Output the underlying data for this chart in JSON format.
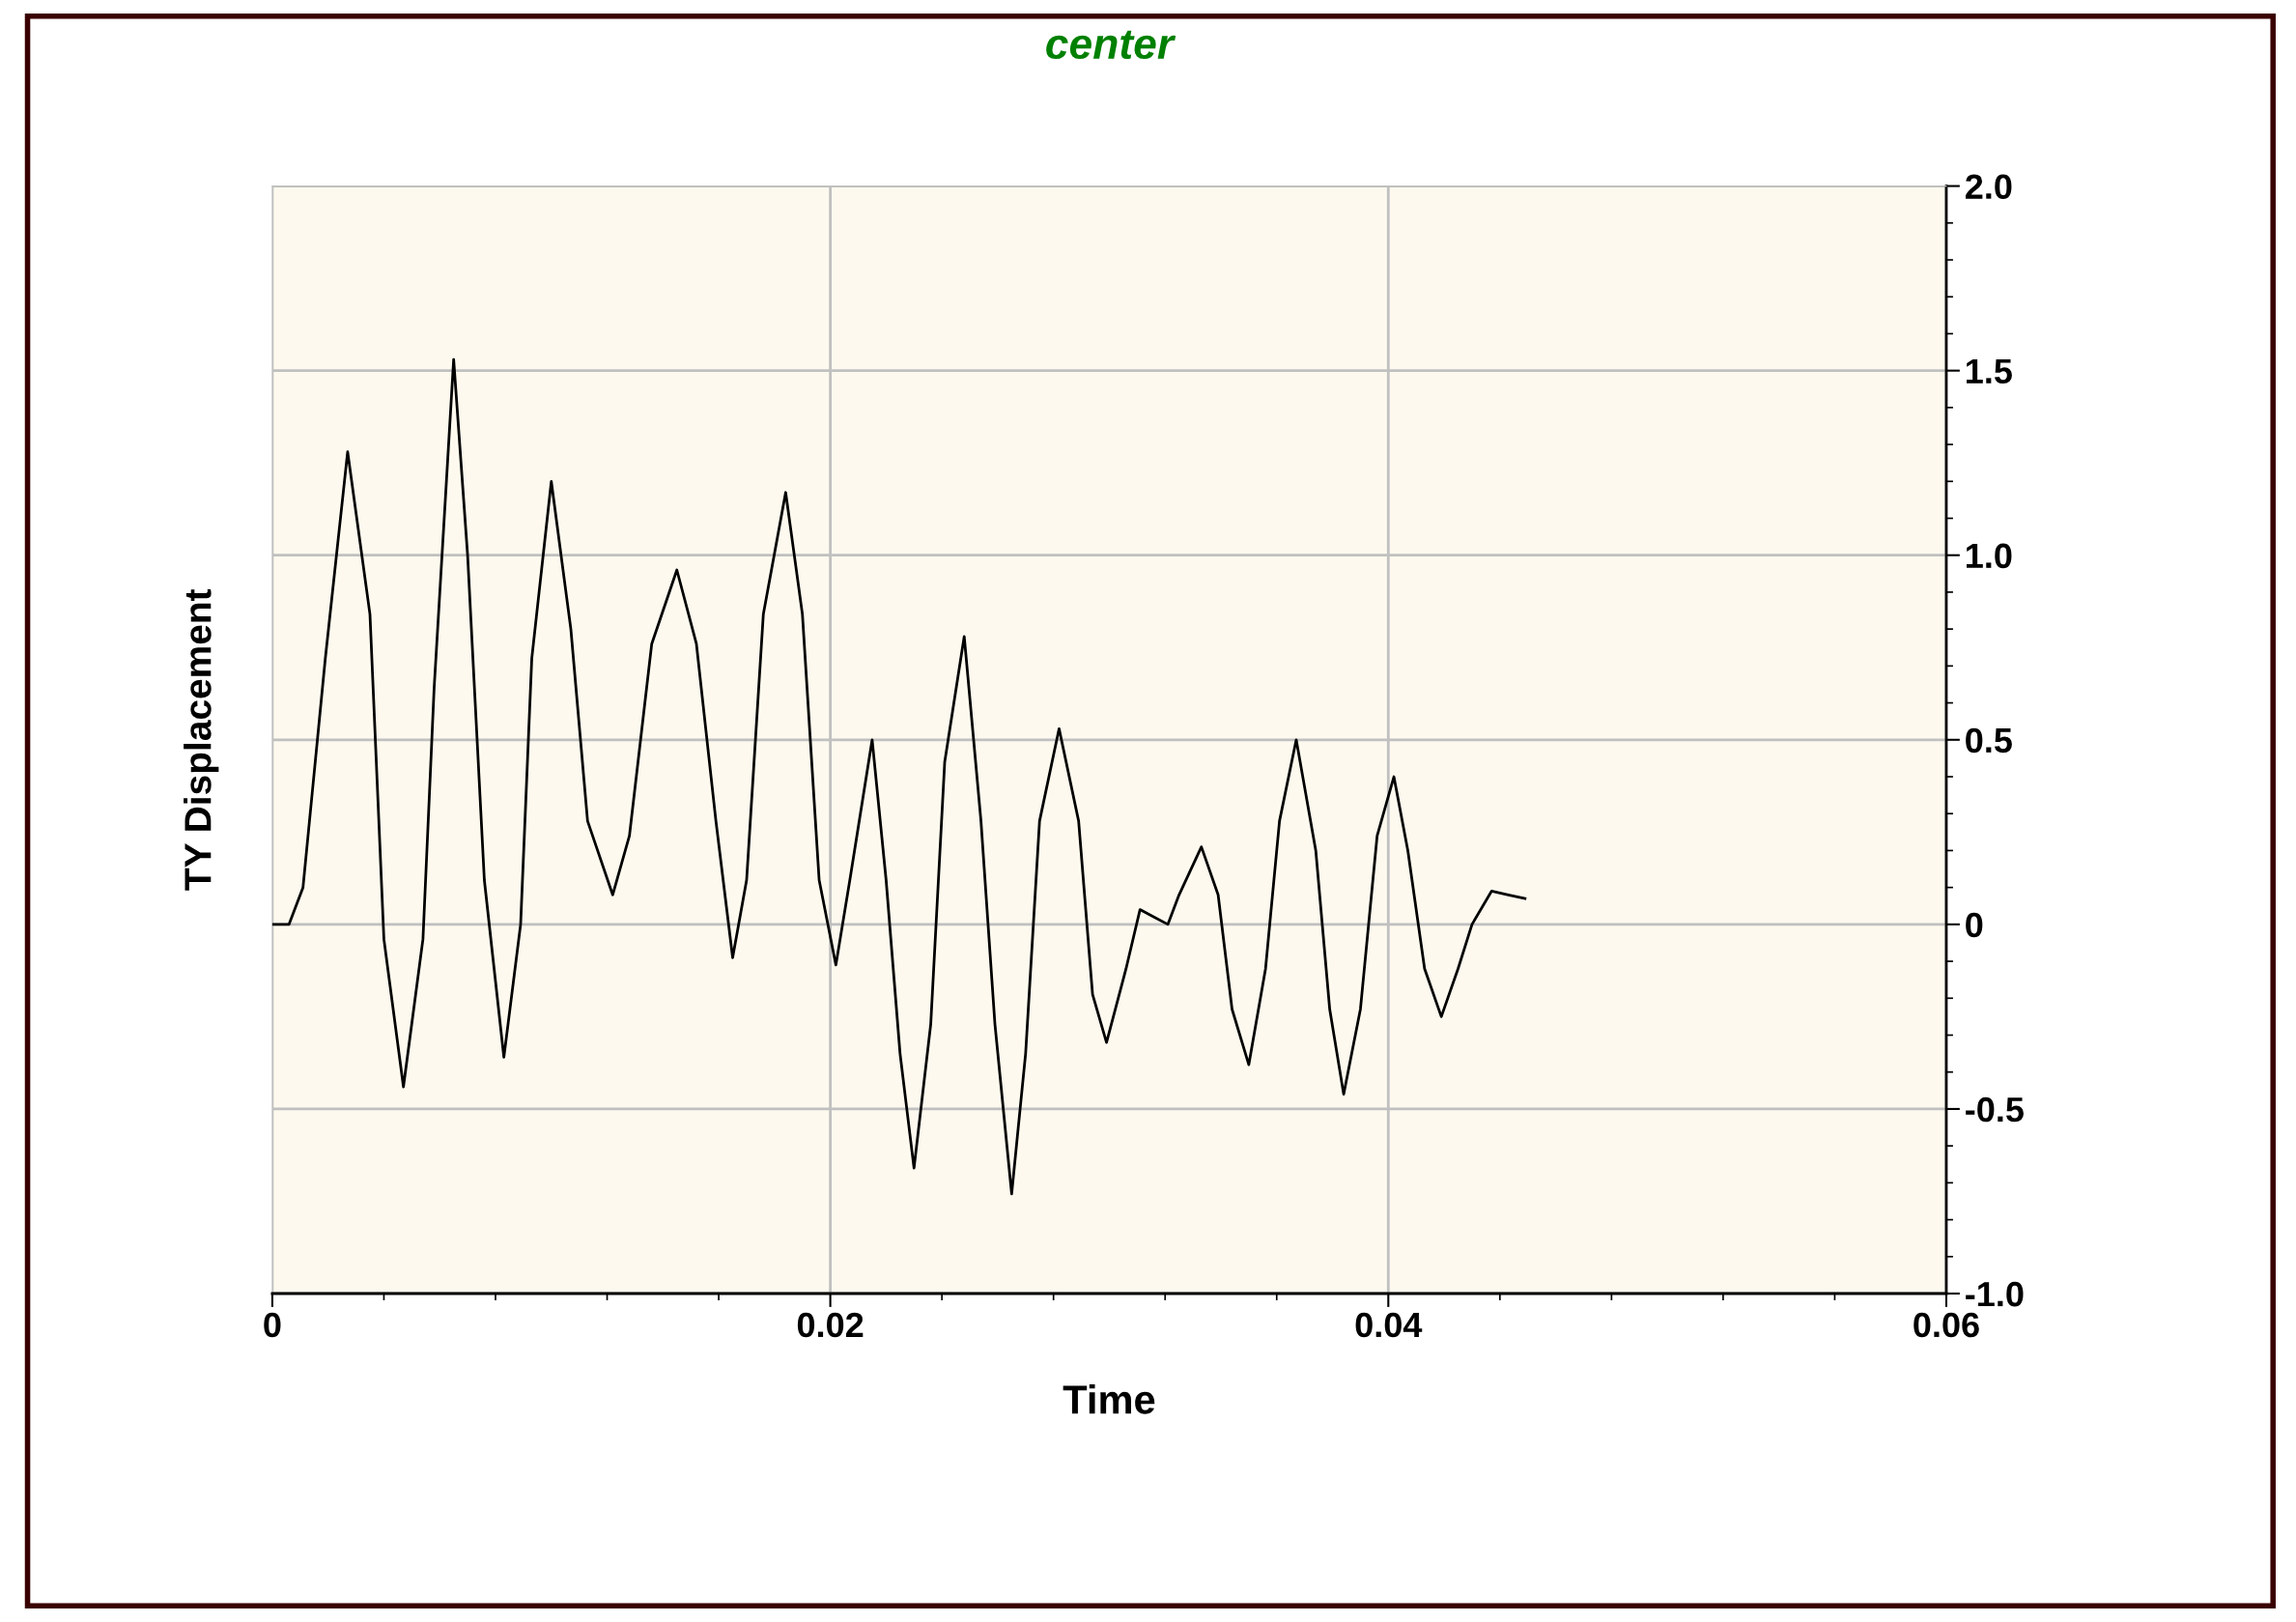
{
  "chart_data": {
    "type": "line",
    "title": "center",
    "xlabel": "Time",
    "ylabel": "TY Displacement",
    "xlim": [
      0,
      0.06
    ],
    "xticks": [
      0,
      0.02,
      0.04,
      0.06
    ],
    "ylim": [
      -1.0,
      2.0
    ],
    "yticks": [
      {
        "value": -1.0,
        "label": "-1.0"
      },
      {
        "value": -0.5,
        "label": "-0.5"
      },
      0,
      {
        "value": 0.5,
        "label": "0.5"
      },
      {
        "value": 1.0,
        "label": "1.0"
      },
      {
        "value": 1.5,
        "label": "1.5"
      },
      {
        "value": 2.0,
        "label": "2.0"
      }
    ],
    "grid": true,
    "marker": "none",
    "line_style": "solid",
    "series": [
      {
        "color": "#000000",
        "x": [
          0,
          0.0006,
          0.0011,
          0.0019,
          0.0027,
          0.0035,
          0.004,
          0.0047,
          0.0054,
          0.0058,
          0.0065,
          0.007,
          0.0076,
          0.0083,
          0.0089,
          0.0093,
          0.01,
          0.0107,
          0.0113,
          0.0122,
          0.0128,
          0.0136,
          0.0145,
          0.0152,
          0.0159,
          0.0165,
          0.017,
          0.0176,
          0.0184,
          0.019,
          0.0196,
          0.0202,
          0.0207,
          0.0215,
          0.022,
          0.0225,
          0.023,
          0.0236,
          0.0241,
          0.0248,
          0.0254,
          0.0259,
          0.0265,
          0.027,
          0.0275,
          0.0282,
          0.0289,
          0.0294,
          0.0299,
          0.0306,
          0.0311,
          0.0316,
          0.0321,
          0.0325,
          0.0333,
          0.0339,
          0.0344,
          0.035,
          0.0356,
          0.0361,
          0.0367,
          0.0374,
          0.0379,
          0.0384,
          0.039,
          0.0396,
          0.0402,
          0.0407,
          0.0413,
          0.0419,
          0.0425,
          0.043,
          0.0437,
          0.0443,
          0.0449
        ],
        "values": [
          0,
          0,
          0.1,
          0.72,
          1.28,
          0.84,
          -0.04,
          -0.44,
          -0.04,
          0.64,
          1.53,
          1.0,
          0.12,
          -0.36,
          0,
          0.72,
          1.2,
          0.8,
          0.28,
          0.08,
          0.24,
          0.76,
          0.96,
          0.76,
          0.28,
          -0.09,
          0.12,
          0.84,
          1.17,
          0.84,
          0.12,
          -0.11,
          0.12,
          0.5,
          0.12,
          -0.35,
          -0.66,
          -0.27,
          0.44,
          0.78,
          0.28,
          -0.27,
          -0.73,
          -0.35,
          0.28,
          0.53,
          0.28,
          -0.19,
          -0.32,
          -0.12,
          0.04,
          0.02,
          0,
          0.08,
          0.21,
          0.08,
          -0.23,
          -0.38,
          -0.12,
          0.28,
          0.5,
          0.2,
          -0.23,
          -0.46,
          -0.23,
          0.24,
          0.4,
          0.2,
          -0.12,
          -0.25,
          -0.12,
          0,
          0.09,
          0.08,
          0.07
        ]
      }
    ]
  }
}
